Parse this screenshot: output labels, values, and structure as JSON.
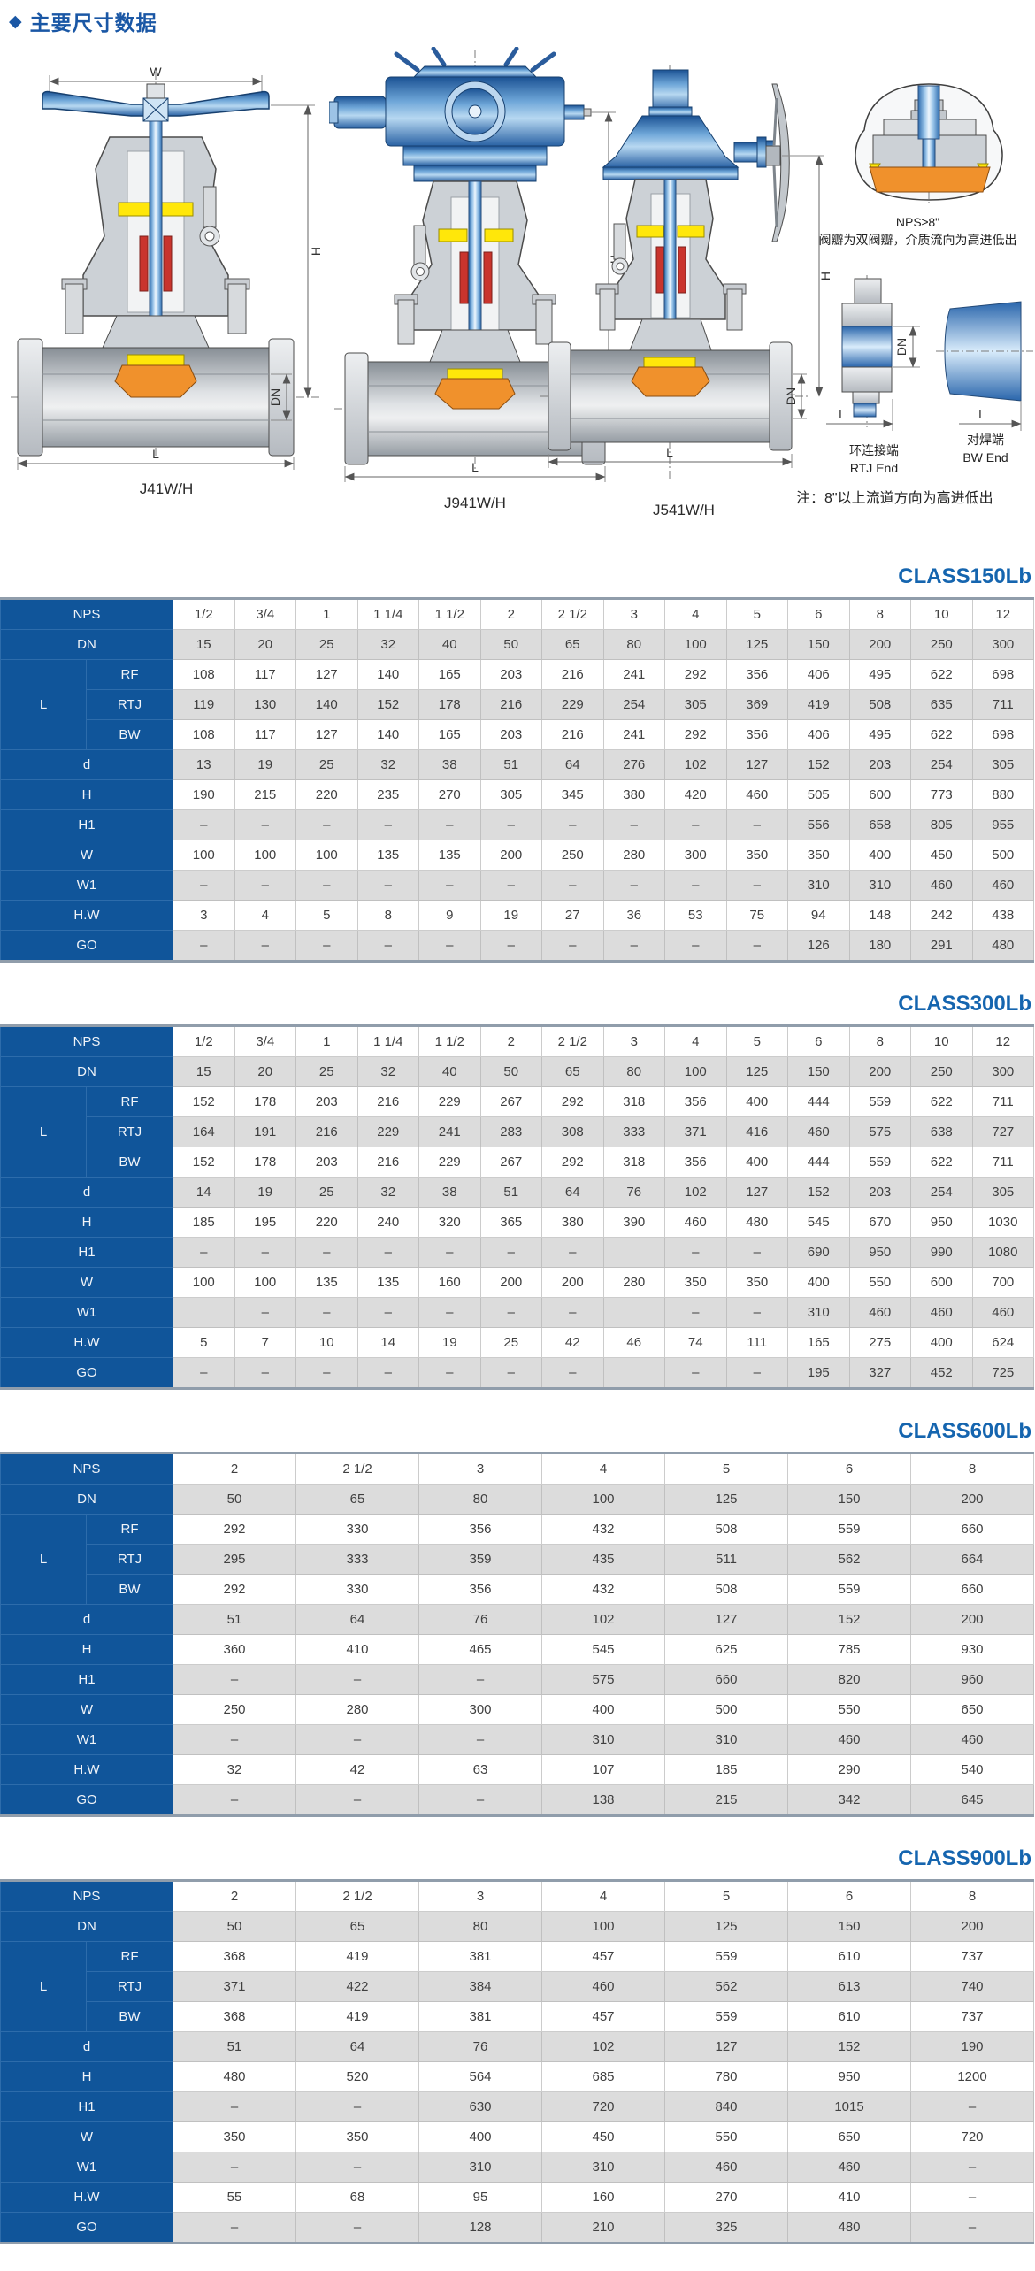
{
  "page": {
    "bullet": "◆",
    "title": "主要尺寸数据"
  },
  "drawings": {
    "dims": {
      "w": "W",
      "h": "H",
      "dn": "DN",
      "l": "L"
    },
    "valve1_label": "J41W/H",
    "valve2_label": "J941W/H",
    "valve3_label": "J541W/H",
    "detail": {
      "line1": "NPS≥8\"",
      "line2": "阀瓣为双阀瓣，介质流向为高进低出"
    },
    "rtj": {
      "cn": "环连接端",
      "en": "RTJ End"
    },
    "bw": {
      "cn": "对焊端",
      "en": "BW End"
    },
    "note": "注：8\"以上流道方向为高进低出"
  },
  "tables": [
    {
      "title": "CLASS150Lb",
      "nps_label": "NPS",
      "l_group_label": "L",
      "nps": [
        "1/2",
        "3/4",
        "1",
        "1 1/4",
        "1 1/2",
        "2",
        "2 1/2",
        "3",
        "4",
        "5",
        "6",
        "8",
        "10",
        "12"
      ],
      "rows": [
        {
          "label": "DN",
          "cells": [
            "15",
            "20",
            "25",
            "32",
            "40",
            "50",
            "65",
            "80",
            "100",
            "125",
            "150",
            "200",
            "250",
            "300"
          ]
        },
        {
          "label": "RF",
          "group": "L",
          "group_start": true,
          "cells": [
            "108",
            "117",
            "127",
            "140",
            "165",
            "203",
            "216",
            "241",
            "292",
            "356",
            "406",
            "495",
            "622",
            "698"
          ]
        },
        {
          "label": "RTJ",
          "group": "L",
          "cells": [
            "119",
            "130",
            "140",
            "152",
            "178",
            "216",
            "229",
            "254",
            "305",
            "369",
            "419",
            "508",
            "635",
            "711"
          ]
        },
        {
          "label": "BW",
          "group": "L",
          "cells": [
            "108",
            "117",
            "127",
            "140",
            "165",
            "203",
            "216",
            "241",
            "292",
            "356",
            "406",
            "495",
            "622",
            "698"
          ]
        },
        {
          "label": "d",
          "cells": [
            "13",
            "19",
            "25",
            "32",
            "38",
            "51",
            "64",
            "276",
            "102",
            "127",
            "152",
            "203",
            "254",
            "305"
          ]
        },
        {
          "label": "H",
          "cells": [
            "190",
            "215",
            "220",
            "235",
            "270",
            "305",
            "345",
            "380",
            "420",
            "460",
            "505",
            "600",
            "773",
            "880"
          ]
        },
        {
          "label": "H1",
          "cells": [
            "–",
            "–",
            "–",
            "–",
            "–",
            "–",
            "–",
            "–",
            "–",
            "–",
            "556",
            "658",
            "805",
            "955"
          ]
        },
        {
          "label": "W",
          "cells": [
            "100",
            "100",
            "100",
            "135",
            "135",
            "200",
            "250",
            "280",
            "300",
            "350",
            "350",
            "400",
            "450",
            "500"
          ]
        },
        {
          "label": "W1",
          "cells": [
            "–",
            "–",
            "–",
            "–",
            "–",
            "–",
            "–",
            "–",
            "–",
            "–",
            "310",
            "310",
            "460",
            "460"
          ]
        },
        {
          "label": "H.W",
          "cells": [
            "3",
            "4",
            "5",
            "8",
            "9",
            "19",
            "27",
            "36",
            "53",
            "75",
            "94",
            "148",
            "242",
            "438"
          ]
        },
        {
          "label": "GO",
          "cells": [
            "–",
            "–",
            "–",
            "–",
            "–",
            "–",
            "–",
            "–",
            "–",
            "–",
            "126",
            "180",
            "291",
            "480"
          ]
        }
      ]
    },
    {
      "title": "CLASS300Lb",
      "nps_label": "NPS",
      "l_group_label": "L",
      "nps": [
        "1/2",
        "3/4",
        "1",
        "1 1/4",
        "1 1/2",
        "2",
        "2 1/2",
        "3",
        "4",
        "5",
        "6",
        "8",
        "10",
        "12"
      ],
      "rows": [
        {
          "label": "DN",
          "cells": [
            "15",
            "20",
            "25",
            "32",
            "40",
            "50",
            "65",
            "80",
            "100",
            "125",
            "150",
            "200",
            "250",
            "300"
          ]
        },
        {
          "label": "RF",
          "group": "L",
          "group_start": true,
          "cells": [
            "152",
            "178",
            "203",
            "216",
            "229",
            "267",
            "292",
            "318",
            "356",
            "400",
            "444",
            "559",
            "622",
            "711"
          ]
        },
        {
          "label": "RTJ",
          "group": "L",
          "cells": [
            "164",
            "191",
            "216",
            "229",
            "241",
            "283",
            "308",
            "333",
            "371",
            "416",
            "460",
            "575",
            "638",
            "727"
          ]
        },
        {
          "label": "BW",
          "group": "L",
          "cells": [
            "152",
            "178",
            "203",
            "216",
            "229",
            "267",
            "292",
            "318",
            "356",
            "400",
            "444",
            "559",
            "622",
            "711"
          ]
        },
        {
          "label": "d",
          "cells": [
            "14",
            "19",
            "25",
            "32",
            "38",
            "51",
            "64",
            "76",
            "102",
            "127",
            "152",
            "203",
            "254",
            "305"
          ]
        },
        {
          "label": "H",
          "cells": [
            "185",
            "195",
            "220",
            "240",
            "320",
            "365",
            "380",
            "390",
            "460",
            "480",
            "545",
            "670",
            "950",
            "1030"
          ]
        },
        {
          "label": "H1",
          "cells": [
            "–",
            "–",
            "–",
            "–",
            "–",
            "–",
            "–",
            "",
            "–",
            "–",
            "690",
            "950",
            "990",
            "1080"
          ]
        },
        {
          "label": "W",
          "cells": [
            "100",
            "100",
            "135",
            "135",
            "160",
            "200",
            "200",
            "280",
            "350",
            "350",
            "400",
            "550",
            "600",
            "700"
          ]
        },
        {
          "label": "W1",
          "cells": [
            "",
            "–",
            "–",
            "–",
            "–",
            "–",
            "–",
            "",
            "–",
            "–",
            "310",
            "460",
            "460",
            "460"
          ]
        },
        {
          "label": "H.W",
          "cells": [
            "5",
            "7",
            "10",
            "14",
            "19",
            "25",
            "42",
            "46",
            "74",
            "111",
            "165",
            "275",
            "400",
            "624"
          ]
        },
        {
          "label": "GO",
          "cells": [
            "–",
            "–",
            "–",
            "–",
            "–",
            "–",
            "–",
            "",
            "–",
            "–",
            "195",
            "327",
            "452",
            "725"
          ]
        }
      ]
    },
    {
      "title": "CLASS600Lb",
      "nps_label": "NPS",
      "l_group_label": "L",
      "nps": [
        "2",
        "2 1/2",
        "3",
        "4",
        "5",
        "6",
        "8"
      ],
      "rows": [
        {
          "label": "DN",
          "cells": [
            "50",
            "65",
            "80",
            "100",
            "125",
            "150",
            "200"
          ]
        },
        {
          "label": "RF",
          "group": "L",
          "group_start": true,
          "cells": [
            "292",
            "330",
            "356",
            "432",
            "508",
            "559",
            "660"
          ]
        },
        {
          "label": "RTJ",
          "group": "L",
          "cells": [
            "295",
            "333",
            "359",
            "435",
            "511",
            "562",
            "664"
          ]
        },
        {
          "label": "BW",
          "group": "L",
          "cells": [
            "292",
            "330",
            "356",
            "432",
            "508",
            "559",
            "660"
          ]
        },
        {
          "label": "d",
          "cells": [
            "51",
            "64",
            "76",
            "102",
            "127",
            "152",
            "200"
          ]
        },
        {
          "label": "H",
          "cells": [
            "360",
            "410",
            "465",
            "545",
            "625",
            "785",
            "930"
          ]
        },
        {
          "label": "H1",
          "cells": [
            "–",
            "–",
            "–",
            "575",
            "660",
            "820",
            "960"
          ]
        },
        {
          "label": "W",
          "cells": [
            "250",
            "280",
            "300",
            "400",
            "500",
            "550",
            "650"
          ]
        },
        {
          "label": "W1",
          "cells": [
            "–",
            "–",
            "–",
            "310",
            "310",
            "460",
            "460"
          ]
        },
        {
          "label": "H.W",
          "cells": [
            "32",
            "42",
            "63",
            "107",
            "185",
            "290",
            "540"
          ]
        },
        {
          "label": "GO",
          "cells": [
            "–",
            "–",
            "–",
            "138",
            "215",
            "342",
            "645"
          ]
        }
      ]
    },
    {
      "title": "CLASS900Lb",
      "nps_label": "NPS",
      "l_group_label": "L",
      "nps": [
        "2",
        "2 1/2",
        "3",
        "4",
        "5",
        "6",
        "8"
      ],
      "rows": [
        {
          "label": "DN",
          "cells": [
            "50",
            "65",
            "80",
            "100",
            "125",
            "150",
            "200"
          ]
        },
        {
          "label": "RF",
          "group": "L",
          "group_start": true,
          "cells": [
            "368",
            "419",
            "381",
            "457",
            "559",
            "610",
            "737"
          ]
        },
        {
          "label": "RTJ",
          "group": "L",
          "cells": [
            "371",
            "422",
            "384",
            "460",
            "562",
            "613",
            "740"
          ]
        },
        {
          "label": "BW",
          "group": "L",
          "cells": [
            "368",
            "419",
            "381",
            "457",
            "559",
            "610",
            "737"
          ]
        },
        {
          "label": "d",
          "cells": [
            "51",
            "64",
            "76",
            "102",
            "127",
            "152",
            "190"
          ]
        },
        {
          "label": "H",
          "cells": [
            "480",
            "520",
            "564",
            "685",
            "780",
            "950",
            "1200"
          ]
        },
        {
          "label": "H1",
          "cells": [
            "–",
            "–",
            "630",
            "720",
            "840",
            "1015",
            "–"
          ]
        },
        {
          "label": "W",
          "cells": [
            "350",
            "350",
            "400",
            "450",
            "550",
            "650",
            "720"
          ]
        },
        {
          "label": "W1",
          "cells": [
            "–",
            "–",
            "310",
            "310",
            "460",
            "460",
            "–"
          ]
        },
        {
          "label": "H.W",
          "cells": [
            "55",
            "68",
            "95",
            "160",
            "270",
            "410",
            "–"
          ]
        },
        {
          "label": "GO",
          "cells": [
            "–",
            "–",
            "128",
            "210",
            "325",
            "480",
            "–"
          ]
        }
      ]
    }
  ],
  "colors": {
    "header_blue": "#10559a",
    "title_blue": "#1565af",
    "row_shade": "#dcdcdc",
    "border_steel": "#909dab",
    "disc_orange": "#f0912c",
    "seal_yellow": "#ffe70a",
    "packing_red": "#c9342d",
    "actuator_blue": "#2a62a4"
  }
}
